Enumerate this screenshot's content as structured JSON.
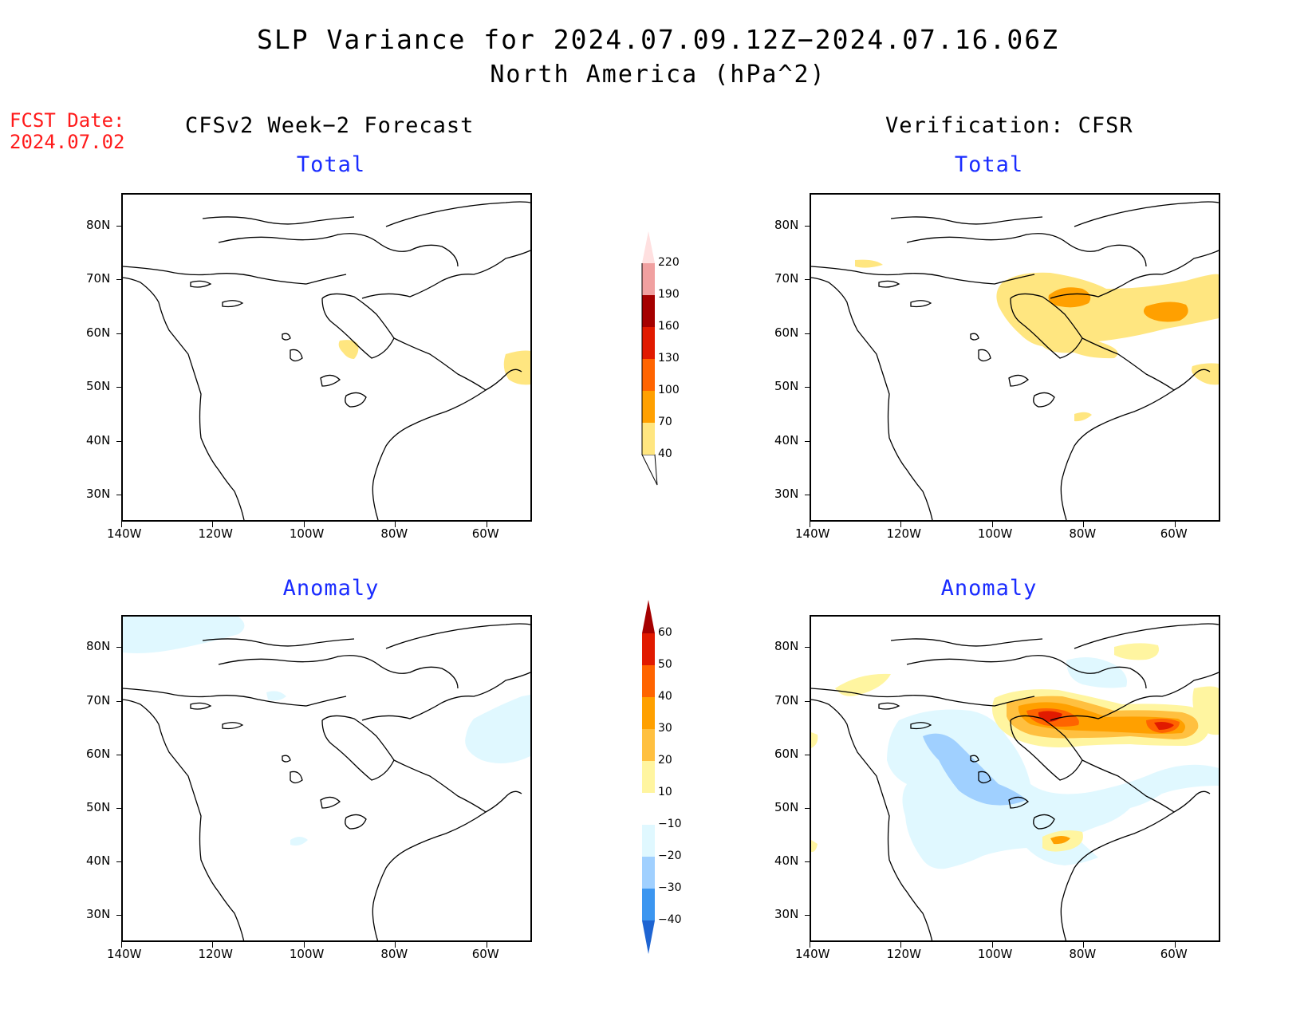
{
  "title": {
    "line1": "SLP Variance for 2024.07.09.12Z−2024.07.16.06Z",
    "line2": "North America (hPa^2)"
  },
  "fcst_label": {
    "line1": "FCST Date:",
    "line2": "2024.07.02"
  },
  "columns": {
    "left": "CFSv2 Week−2 Forecast",
    "right": "Verification: CFSR"
  },
  "panels": {
    "fc_total": "Total",
    "ver_total": "Total",
    "fc_anomaly": "Anomaly",
    "ver_anomaly": "Anomaly"
  },
  "axes": {
    "lat_labels": [
      "80N",
      "70N",
      "60N",
      "50N",
      "40N",
      "30N"
    ],
    "lon_labels": [
      "140W",
      "120W",
      "100W",
      "80W",
      "60W"
    ],
    "lat_values": [
      80,
      70,
      60,
      50,
      40,
      30
    ],
    "lon_values": [
      -140,
      -120,
      -100,
      -80,
      -60
    ],
    "lat_range": [
      25,
      86
    ],
    "lon_range": [
      -140,
      -50
    ]
  },
  "colorbar_total": {
    "levels": [
      "40",
      "70",
      "100",
      "130",
      "160",
      "190",
      "220"
    ],
    "colors": [
      "#ffe680",
      "#ffa000",
      "#ff6400",
      "#e11a00",
      "#a50000",
      "#f0a0a0",
      "#ffe0e0"
    ]
  },
  "colorbar_anomaly": {
    "levels": [
      "60",
      "50",
      "40",
      "30",
      "20",
      "10",
      "−10",
      "−20",
      "−30",
      "−40"
    ],
    "colors": [
      "#a50000",
      "#e11a00",
      "#ff6400",
      "#ffa000",
      "#ffc040",
      "#fff5a0",
      "#ffffff",
      "#e0f8ff",
      "#a0d0ff",
      "#3c96f0",
      "#1e64d2"
    ]
  }
}
